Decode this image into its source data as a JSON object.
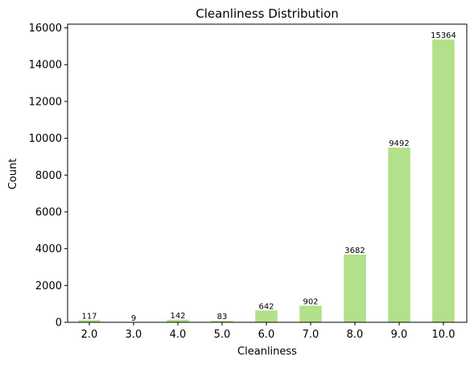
{
  "chart_data": {
    "type": "bar",
    "title": "Cleanliness Distribution",
    "xlabel": "Cleanliness",
    "ylabel": "Count",
    "categories": [
      "2.0",
      "3.0",
      "4.0",
      "5.0",
      "6.0",
      "7.0",
      "8.0",
      "9.0",
      "10.0"
    ],
    "values": [
      117,
      9,
      142,
      83,
      642,
      902,
      3682,
      9492,
      15364
    ],
    "data_labels": [
      "117",
      "9",
      "142",
      "83",
      "642",
      "902",
      "3682",
      "9492",
      "15364"
    ],
    "ylim": [
      0,
      16200
    ],
    "yticks": [
      0,
      2000,
      4000,
      6000,
      8000,
      10000,
      12000,
      14000,
      16000
    ],
    "ytick_labels": [
      "0",
      "2000",
      "4000",
      "6000",
      "8000",
      "10000",
      "12000",
      "14000",
      "16000"
    ],
    "bar_color": "#b3e08a",
    "grid": false,
    "legend": "none"
  }
}
